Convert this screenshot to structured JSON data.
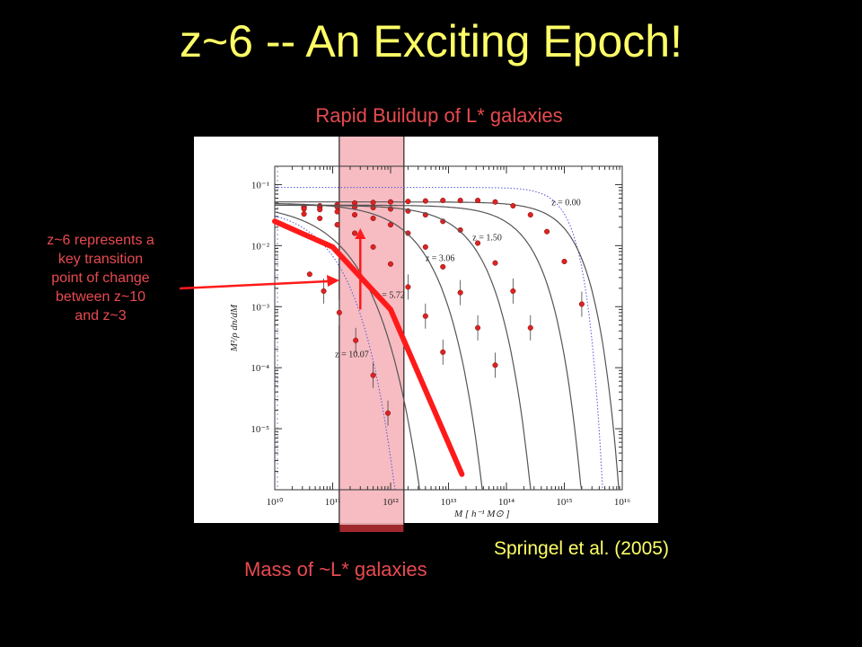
{
  "slide": {
    "title": "z~6 -- An Exciting Epoch!",
    "subtitle": "Rapid Buildup of L* galaxies",
    "annotation_lines": [
      "z~6 represents a",
      "key transition",
      "point of change",
      "between z~10",
      "and z~3"
    ],
    "source": "Springel et al. (2005)",
    "mass_label": "Mass of ~L* galaxies"
  },
  "colors": {
    "title": "#ffff66",
    "accent_red": "#e84a50",
    "thick_line": "#ff1a1a",
    "highlight_band": "#f5b5bb",
    "point": "#dd2222",
    "curve": "#555555",
    "dotted": "#5555dd",
    "plot_bg": "#ffffff",
    "slide_bg": "#000000"
  },
  "chart_data": {
    "type": "line",
    "xscale": "log",
    "yscale": "log",
    "xlim": [
      10000000000.0,
      1e+16
    ],
    "ylim": [
      1e-06,
      0.2
    ],
    "xlabel": "M  [ h⁻¹ M⊙ ]",
    "ylabel": "M²/ρ  dn/dM",
    "x_tick_labels": [
      "10¹⁰",
      "10¹¹",
      "10¹²",
      "10¹³",
      "10¹⁴",
      "10¹⁵",
      "10¹⁶"
    ],
    "y_tick_labels": [
      "10⁻⁵",
      "10⁻⁴",
      "10⁻³",
      "10⁻²",
      "10⁻¹"
    ],
    "highlight_band_x": [
      130000000000.0,
      1700000000000.0
    ],
    "series": [
      {
        "name": "z = 0.00",
        "amp": 0.052,
        "xc": 1000000000000000.0,
        "beta": 1.1,
        "points": [
          [
            32000000000.0,
            0.043
          ],
          [
            60000000000.0,
            0.045
          ],
          [
            120000000000.0,
            0.047
          ],
          [
            240000000000.0,
            0.05
          ],
          [
            500000000000.0,
            0.051
          ],
          [
            1000000000000.0,
            0.052
          ],
          [
            2000000000000.0,
            0.053
          ],
          [
            4000000000000.0,
            0.054
          ],
          [
            8000000000000.0,
            0.055
          ],
          [
            16000000000000.0,
            0.055
          ],
          [
            32000000000000.0,
            0.055
          ],
          [
            64000000000000.0,
            0.052
          ],
          [
            130000000000000.0,
            0.045
          ],
          [
            260000000000000.0,
            0.032
          ],
          [
            500000000000000.0,
            0.017
          ],
          [
            1000000000000000.0,
            0.0055
          ],
          [
            2000000000000000.0,
            0.0011
          ]
        ]
      },
      {
        "name": "z = 1.50",
        "amp": 0.046,
        "xc": 160000000000000.0,
        "beta": 0.95,
        "points": [
          [
            32000000000.0,
            0.042
          ],
          [
            60000000000.0,
            0.043
          ],
          [
            120000000000.0,
            0.043
          ],
          [
            240000000000.0,
            0.043
          ],
          [
            500000000000.0,
            0.042
          ],
          [
            1000000000000.0,
            0.04
          ],
          [
            2000000000000.0,
            0.037
          ],
          [
            4000000000000.0,
            0.032
          ],
          [
            8000000000000.0,
            0.025
          ],
          [
            16000000000000.0,
            0.018
          ],
          [
            32000000000000.0,
            0.011
          ],
          [
            64000000000000.0,
            0.0052
          ],
          [
            130000000000000.0,
            0.0018
          ],
          [
            260000000000000.0,
            0.00045
          ]
        ]
      },
      {
        "name": "z = 3.06",
        "amp": 0.046,
        "xc": 16000000000000.0,
        "beta": 0.85,
        "points": [
          [
            32000000000.0,
            0.04
          ],
          [
            60000000000.0,
            0.039
          ],
          [
            120000000000.0,
            0.036
          ],
          [
            240000000000.0,
            0.032
          ],
          [
            500000000000.0,
            0.028
          ],
          [
            1000000000000.0,
            0.022
          ],
          [
            2000000000000.0,
            0.016
          ],
          [
            4000000000000.0,
            0.0095
          ],
          [
            8000000000000.0,
            0.0045
          ],
          [
            16000000000000.0,
            0.0017
          ],
          [
            32000000000000.0,
            0.00045
          ],
          [
            64000000000000.0,
            0.00011
          ]
        ]
      },
      {
        "name": "z = 5.72",
        "amp": 0.05,
        "xc": 1600000000000.0,
        "beta": 0.75,
        "points": [
          [
            32000000000.0,
            0.033
          ],
          [
            60000000000.0,
            0.028
          ],
          [
            120000000000.0,
            0.022
          ],
          [
            240000000000.0,
            0.016
          ],
          [
            500000000000.0,
            0.0095
          ],
          [
            1000000000000.0,
            0.005
          ],
          [
            2000000000000.0,
            0.0021
          ],
          [
            4000000000000.0,
            0.0007
          ],
          [
            8000000000000.0,
            0.00018
          ]
        ]
      },
      {
        "name": "z = 10.07",
        "amp": 0.05,
        "xc": 60000000000.0,
        "beta": 0.6,
        "points": [
          [
            40000000000.0,
            0.0034
          ],
          [
            70000000000.0,
            0.0018
          ],
          [
            130000000000.0,
            0.0008
          ],
          [
            250000000000.0,
            0.00028
          ],
          [
            500000000000.0,
            7.5e-05
          ],
          [
            900000000000.0,
            1.8e-05
          ]
        ]
      }
    ],
    "dotted_curves": [
      {
        "amp": 0.09,
        "xc": 1000000000000000.0,
        "beta": 1.6
      },
      {
        "amp": 0.045,
        "xc": 40000000000.0,
        "beta": 0.7
      }
    ],
    "thick_line": [
      [
        10000000000.0,
        0.025
      ],
      [
        100000000000.0,
        0.0095
      ],
      [
        1000000000000.0,
        0.0009
      ],
      [
        17000000000000.0,
        1.8e-06
      ]
    ],
    "arrow": {
      "x": 300000000000.0,
      "y_from": 0.0009,
      "y_to": 0.018
    }
  }
}
